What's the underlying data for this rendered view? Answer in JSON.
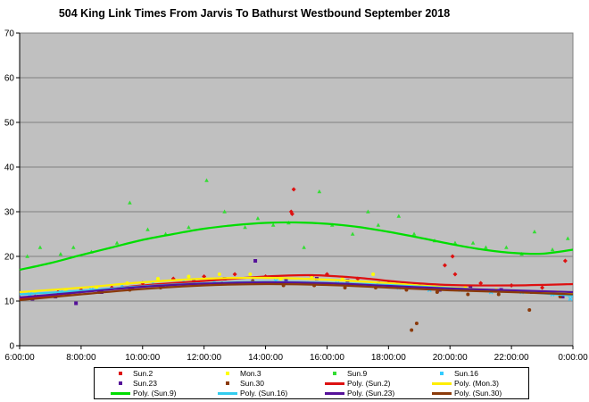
{
  "chart_data": {
    "type": "scatter",
    "title": "504 King Link Times From Jarvis To Bathurst Westbound September 2018",
    "xlabel": "",
    "ylabel": "",
    "xlim": [
      "6:00:00",
      "0:00:00"
    ],
    "ylim": [
      0,
      70
    ],
    "x_ticks": [
      "6:00:00",
      "8:00:00",
      "10:00:00",
      "12:00:00",
      "14:00:00",
      "16:00:00",
      "18:00:00",
      "20:00:00",
      "22:00:00",
      "0:00:00"
    ],
    "y_ticks": [
      0,
      10,
      20,
      30,
      40,
      50,
      60,
      70
    ],
    "grid": true,
    "background": "#c0c0c0",
    "legend_position": "bottom",
    "series": [
      {
        "name": "Sun.2",
        "color": "#dd1111",
        "marker": "diamond",
        "points": [
          [
            "6:30",
            11
          ],
          [
            "7:15",
            12
          ],
          [
            "8:00",
            12.5
          ],
          [
            "9:00",
            13
          ],
          [
            "10:00",
            14
          ],
          [
            "11:00",
            15
          ],
          [
            "12:00",
            15.5
          ],
          [
            "13:00",
            16
          ],
          [
            "14:00",
            15.5
          ],
          [
            "14:55",
            35
          ],
          [
            "14:50",
            30
          ],
          [
            "14:52",
            29.5
          ],
          [
            "15:30",
            15.5
          ],
          [
            "16:00",
            16
          ],
          [
            "17:00",
            15
          ],
          [
            "18:00",
            14
          ],
          [
            "19:00",
            13.5
          ],
          [
            "19:50",
            18
          ],
          [
            "20:05",
            20
          ],
          [
            "20:10",
            16
          ],
          [
            "21:00",
            14
          ],
          [
            "22:00",
            13.5
          ],
          [
            "23:00",
            13
          ],
          [
            "23:45",
            19
          ]
        ]
      },
      {
        "name": "Mon.3",
        "color": "#ffff00",
        "marker": "circle",
        "points": [
          [
            "6:30",
            12
          ],
          [
            "7:30",
            12.5
          ],
          [
            "8:30",
            13
          ],
          [
            "9:30",
            14
          ],
          [
            "10:30",
            15
          ],
          [
            "11:30",
            15.5
          ],
          [
            "12:30",
            16
          ],
          [
            "13:30",
            16
          ],
          [
            "14:30",
            15
          ],
          [
            "15:30",
            15.5
          ],
          [
            "16:30",
            15
          ],
          [
            "17:30",
            16
          ],
          [
            "18:30",
            14
          ],
          [
            "19:30",
            13.5
          ],
          [
            "20:30",
            13
          ],
          [
            "21:30",
            12.5
          ],
          [
            "22:30",
            12
          ],
          [
            "23:30",
            12
          ]
        ]
      },
      {
        "name": "Sun.9",
        "color": "#33dd33",
        "marker": "triangle",
        "points": [
          [
            "6:15",
            20
          ],
          [
            "6:40",
            22
          ],
          [
            "7:20",
            20.5
          ],
          [
            "7:45",
            22
          ],
          [
            "8:20",
            21
          ],
          [
            "9:10",
            23
          ],
          [
            "9:35",
            32
          ],
          [
            "10:10",
            26
          ],
          [
            "10:45",
            25
          ],
          [
            "11:30",
            26.5
          ],
          [
            "12:05",
            37
          ],
          [
            "12:40",
            30
          ],
          [
            "13:20",
            26.5
          ],
          [
            "13:45",
            28.5
          ],
          [
            "14:15",
            27
          ],
          [
            "14:45",
            27.5
          ],
          [
            "15:15",
            22
          ],
          [
            "15:45",
            34.5
          ],
          [
            "16:10",
            27
          ],
          [
            "16:50",
            25
          ],
          [
            "17:20",
            30
          ],
          [
            "17:40",
            27
          ],
          [
            "18:20",
            29
          ],
          [
            "18:50",
            25
          ],
          [
            "19:30",
            23.5
          ],
          [
            "20:10",
            23
          ],
          [
            "20:45",
            23
          ],
          [
            "21:10",
            22
          ],
          [
            "21:50",
            22
          ],
          [
            "22:20",
            20.5
          ],
          [
            "22:45",
            25.5
          ],
          [
            "23:20",
            21.5
          ],
          [
            "23:50",
            24
          ]
        ]
      },
      {
        "name": "Sun.16",
        "color": "#33ccff",
        "marker": "x",
        "points": [
          [
            "6:20",
            11.5
          ],
          [
            "7:20",
            12
          ],
          [
            "8:20",
            12.5
          ],
          [
            "9:20",
            13.5
          ],
          [
            "10:20",
            14
          ],
          [
            "11:20",
            14.5
          ],
          [
            "12:20",
            14.5
          ],
          [
            "13:20",
            14
          ],
          [
            "14:20",
            14.5
          ],
          [
            "15:20",
            14
          ],
          [
            "16:20",
            14
          ],
          [
            "17:20",
            13.5
          ],
          [
            "18:20",
            13
          ],
          [
            "19:20",
            12.5
          ],
          [
            "20:20",
            12.5
          ],
          [
            "21:20",
            12
          ],
          [
            "22:20",
            12
          ],
          [
            "23:20",
            11.5
          ],
          [
            "23:55",
            10.5
          ]
        ]
      },
      {
        "name": "Sun.23",
        "color": "#551199",
        "marker": "square",
        "points": [
          [
            "6:25",
            10.5
          ],
          [
            "7:10",
            11
          ],
          [
            "7:50",
            9.5
          ],
          [
            "8:40",
            12
          ],
          [
            "9:40",
            13
          ],
          [
            "10:40",
            13.5
          ],
          [
            "11:40",
            14.5
          ],
          [
            "12:40",
            15
          ],
          [
            "13:40",
            19
          ],
          [
            "14:40",
            14.5
          ],
          [
            "15:40",
            15
          ],
          [
            "16:40",
            14.5
          ],
          [
            "17:40",
            14
          ],
          [
            "18:40",
            13
          ],
          [
            "19:40",
            12.5
          ],
          [
            "20:40",
            13
          ],
          [
            "21:40",
            12.5
          ],
          [
            "22:40",
            12
          ],
          [
            "23:40",
            11
          ]
        ]
      },
      {
        "name": "Sun.30",
        "color": "#8b3a0a",
        "marker": "circle",
        "points": [
          [
            "6:35",
            11
          ],
          [
            "7:35",
            11.5
          ],
          [
            "8:35",
            12
          ],
          [
            "9:35",
            12.5
          ],
          [
            "10:35",
            13
          ],
          [
            "11:35",
            14
          ],
          [
            "12:35",
            14
          ],
          [
            "13:35",
            14.5
          ],
          [
            "14:35",
            13.5
          ],
          [
            "15:35",
            13.5
          ],
          [
            "16:35",
            13
          ],
          [
            "17:35",
            13
          ],
          [
            "18:35",
            12.5
          ],
          [
            "18:45",
            3.5
          ],
          [
            "18:55",
            5
          ],
          [
            "19:35",
            12
          ],
          [
            "20:35",
            11.5
          ],
          [
            "21:35",
            11.5
          ],
          [
            "22:35",
            8
          ],
          [
            "23:35",
            11
          ]
        ]
      }
    ],
    "trendlines": [
      {
        "name": "Poly. (Sun.2)",
        "color": "#dd1111",
        "points": [
          [
            "6:00",
            10.5
          ],
          [
            "8:00",
            12
          ],
          [
            "10:00",
            13.5
          ],
          [
            "12:00",
            14.5
          ],
          [
            "14:00",
            15.5
          ],
          [
            "15:30",
            15.8
          ],
          [
            "17:00",
            15.2
          ],
          [
            "18:30",
            14.2
          ],
          [
            "20:00",
            13.6
          ],
          [
            "22:00",
            13.5
          ],
          [
            "0:00",
            13.8
          ]
        ]
      },
      {
        "name": "Poly. (Mon.3)",
        "color": "#ffee00",
        "points": [
          [
            "6:00",
            12
          ],
          [
            "8:00",
            13
          ],
          [
            "10:00",
            14.2
          ],
          [
            "12:00",
            15
          ],
          [
            "14:00",
            15.2
          ],
          [
            "16:00",
            14.8
          ],
          [
            "18:00",
            14
          ],
          [
            "20:00",
            13
          ],
          [
            "22:00",
            12.3
          ],
          [
            "0:00",
            11.8
          ]
        ]
      },
      {
        "name": "Poly. (Sun.9)",
        "color": "#00dd00",
        "points": [
          [
            "6:00",
            17
          ],
          [
            "7:00",
            18.5
          ],
          [
            "8:00",
            20.3
          ],
          [
            "9:00",
            22
          ],
          [
            "10:00",
            23.7
          ],
          [
            "11:00",
            25
          ],
          [
            "12:00",
            26.2
          ],
          [
            "13:00",
            27
          ],
          [
            "14:00",
            27.5
          ],
          [
            "15:00",
            27.6
          ],
          [
            "16:00",
            27.3
          ],
          [
            "17:00",
            26.6
          ],
          [
            "18:00",
            25.5
          ],
          [
            "19:00",
            24.2
          ],
          [
            "20:00",
            22.8
          ],
          [
            "21:00",
            21.6
          ],
          [
            "22:00",
            20.8
          ],
          [
            "23:00",
            20.6
          ],
          [
            "0:00",
            21.5
          ]
        ]
      },
      {
        "name": "Poly. (Sun.16)",
        "color": "#33ccee",
        "points": [
          [
            "6:00",
            11.5
          ],
          [
            "8:00",
            12.3
          ],
          [
            "10:00",
            13.3
          ],
          [
            "12:00",
            14
          ],
          [
            "14:00",
            14.3
          ],
          [
            "16:00",
            14.1
          ],
          [
            "18:00",
            13.6
          ],
          [
            "20:00",
            12.9
          ],
          [
            "22:00",
            12.2
          ],
          [
            "0:00",
            11.2
          ]
        ]
      },
      {
        "name": "Poly. (Sun.23)",
        "color": "#551199",
        "points": [
          [
            "6:00",
            10.8
          ],
          [
            "8:00",
            12
          ],
          [
            "10:00",
            13.2
          ],
          [
            "12:00",
            13.9
          ],
          [
            "14:00",
            14.2
          ],
          [
            "16:00",
            14
          ],
          [
            "18:00",
            13.4
          ],
          [
            "20:00",
            12.8
          ],
          [
            "22:00",
            12.4
          ],
          [
            "0:00",
            12
          ]
        ]
      },
      {
        "name": "Poly. (Sun.30)",
        "color": "#8b3a0a",
        "points": [
          [
            "6:00",
            10.2
          ],
          [
            "8:00",
            11.5
          ],
          [
            "10:00",
            12.7
          ],
          [
            "12:00",
            13.5
          ],
          [
            "14:00",
            13.8
          ],
          [
            "16:00",
            13.6
          ],
          [
            "18:00",
            13
          ],
          [
            "20:00",
            12.4
          ],
          [
            "22:00",
            12
          ],
          [
            "0:00",
            11.5
          ]
        ]
      }
    ]
  },
  "legend": {
    "items": [
      {
        "label": "Sun.2",
        "color": "#dd1111",
        "kind": "dot"
      },
      {
        "label": "Mon.3",
        "color": "#ffff00",
        "kind": "dot"
      },
      {
        "label": "Sun.9",
        "color": "#33dd33",
        "kind": "dot"
      },
      {
        "label": "Sun.16",
        "color": "#33ccff",
        "kind": "dot"
      },
      {
        "label": "Sun.23",
        "color": "#551199",
        "kind": "dot"
      },
      {
        "label": "Sun.30",
        "color": "#8b3a0a",
        "kind": "dot"
      },
      {
        "label": "Poly. (Sun.2)",
        "color": "#dd1111",
        "kind": "line"
      },
      {
        "label": "Poly. (Mon.3)",
        "color": "#ffee00",
        "kind": "line"
      },
      {
        "label": "Poly. (Sun.9)",
        "color": "#00dd00",
        "kind": "line"
      },
      {
        "label": "Poly. (Sun.16)",
        "color": "#33ccee",
        "kind": "line"
      },
      {
        "label": "Poly. (Sun.23)",
        "color": "#551199",
        "kind": "line"
      },
      {
        "label": "Poly. (Sun.30)",
        "color": "#8b3a0a",
        "kind": "line"
      }
    ]
  }
}
